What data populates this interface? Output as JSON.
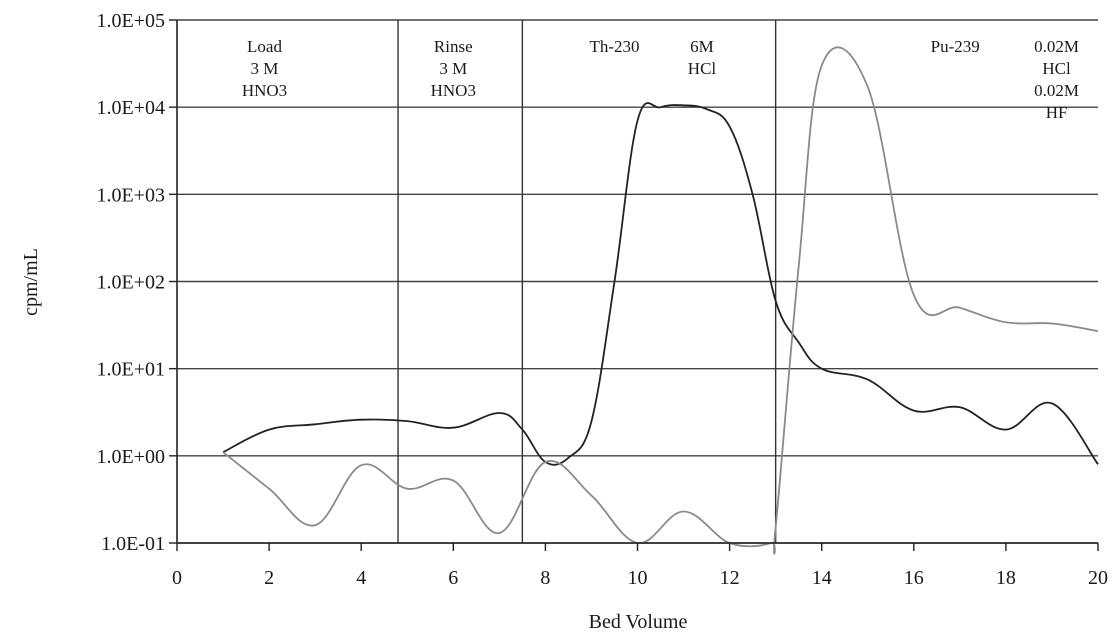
{
  "chart_data": {
    "type": "line",
    "title": "",
    "xlabel": "Bed Volume",
    "ylabel": "cpm/mL",
    "xlim": [
      0,
      20
    ],
    "ylim": [
      0.1,
      100000
    ],
    "yscale": "log",
    "grid": "horizontal",
    "x_ticks": [
      "0",
      "2",
      "4",
      "6",
      "8",
      "10",
      "12",
      "14",
      "16",
      "18",
      "20"
    ],
    "x_tick_values": [
      0,
      2,
      4,
      6,
      8,
      10,
      12,
      14,
      16,
      18,
      20
    ],
    "y_ticks": [
      "1.0E-01",
      "1.0E+00",
      "1.0E+01",
      "1.0E+02",
      "1.0E+03",
      "1.0E+04",
      "1.0E+05"
    ],
    "y_tick_values": [
      0.1,
      1,
      10,
      100,
      1000,
      10000,
      100000
    ],
    "zone_dividers": [
      4.8,
      7.5,
      13.0
    ],
    "zone_labels": [
      {
        "lines": [
          "Load",
          "3 M",
          "HNO3"
        ],
        "x": 1.9,
        "y_top": 50000
      },
      {
        "lines": [
          "Rinse",
          "3 M",
          "HNO3"
        ],
        "x": 6.0,
        "y_top": 50000
      },
      {
        "lines": [
          "Th-230"
        ],
        "x": 9.5,
        "y_top": 50000
      },
      {
        "lines": [
          "6M",
          "HCl"
        ],
        "x": 11.4,
        "y_top": 50000
      },
      {
        "lines": [
          "Pu-239"
        ],
        "x": 16.9,
        "y_top": 50000
      },
      {
        "lines": [
          "0.02M",
          "HCl",
          "0.02M",
          "HF"
        ],
        "x": 19.1,
        "y_top": 50000
      }
    ],
    "series": [
      {
        "color": "#222222",
        "points": [
          [
            1.0,
            1.1
          ],
          [
            2.0,
            2.0
          ],
          [
            3.0,
            2.3
          ],
          [
            4.0,
            2.6
          ],
          [
            5.0,
            2.5
          ],
          [
            6.0,
            2.1
          ],
          [
            7.0,
            3.1
          ],
          [
            7.5,
            2.0
          ],
          [
            8.0,
            0.85
          ],
          [
            8.5,
            0.95
          ],
          [
            9.0,
            2.5
          ],
          [
            9.5,
            100
          ],
          [
            10.0,
            7000
          ],
          [
            10.5,
            10000
          ],
          [
            11.0,
            10500
          ],
          [
            11.5,
            9500
          ],
          [
            12.0,
            6000
          ],
          [
            12.5,
            1000
          ],
          [
            13.0,
            60
          ],
          [
            13.5,
            20
          ],
          [
            14.0,
            10
          ],
          [
            15.0,
            7.5
          ],
          [
            16.0,
            3.3
          ],
          [
            17.0,
            3.6
          ],
          [
            18.0,
            2.0
          ],
          [
            19.0,
            4.0
          ],
          [
            20.0,
            0.8
          ]
        ]
      },
      {
        "color": "#8a8a8a",
        "points": [
          [
            1.0,
            1.1
          ],
          [
            2.0,
            0.42
          ],
          [
            3.0,
            0.16
          ],
          [
            4.0,
            0.78
          ],
          [
            5.0,
            0.42
          ],
          [
            6.0,
            0.52
          ],
          [
            7.0,
            0.13
          ],
          [
            8.0,
            0.85
          ],
          [
            9.0,
            0.35
          ],
          [
            10.0,
            0.1
          ],
          [
            11.0,
            0.23
          ],
          [
            12.0,
            0.1
          ],
          [
            12.9,
            0.1
          ],
          [
            13.0,
            0.15
          ],
          [
            13.5,
            150
          ],
          [
            14.0,
            30000
          ],
          [
            15.0,
            17000
          ],
          [
            16.0,
            70
          ],
          [
            17.0,
            50
          ],
          [
            18.0,
            34
          ],
          [
            19.0,
            33
          ],
          [
            20.0,
            27
          ]
        ]
      }
    ]
  }
}
